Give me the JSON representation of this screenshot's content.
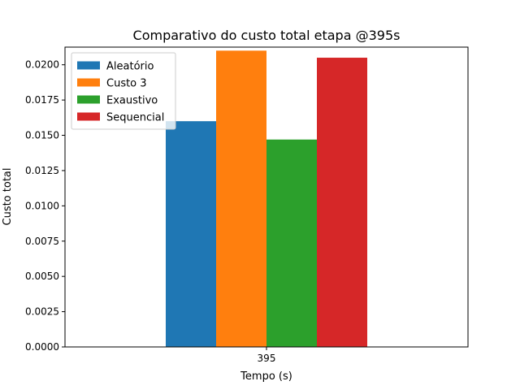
{
  "chart_data": {
    "type": "bar",
    "title": "Comparativo do custo total etapa @395s",
    "xlabel": "Tempo (s)",
    "ylabel": "Custo total",
    "categories": [
      "395"
    ],
    "series": [
      {
        "name": "Aleatório",
        "values": [
          0.016
        ],
        "color": "#1f77b4"
      },
      {
        "name": "Custo 3",
        "values": [
          0.021
        ],
        "color": "#ff7f0e"
      },
      {
        "name": "Exaustivo",
        "values": [
          0.0147
        ],
        "color": "#2ca02c"
      },
      {
        "name": "Sequencial",
        "values": [
          0.0205
        ],
        "color": "#d62728"
      }
    ],
    "ylim": [
      0,
      0.02125
    ],
    "yticks": [
      "0.0000",
      "0.0025",
      "0.0050",
      "0.0075",
      "0.0100",
      "0.0125",
      "0.0150",
      "0.0175",
      "0.0200"
    ],
    "grid": false,
    "legend_position": "top-left"
  }
}
